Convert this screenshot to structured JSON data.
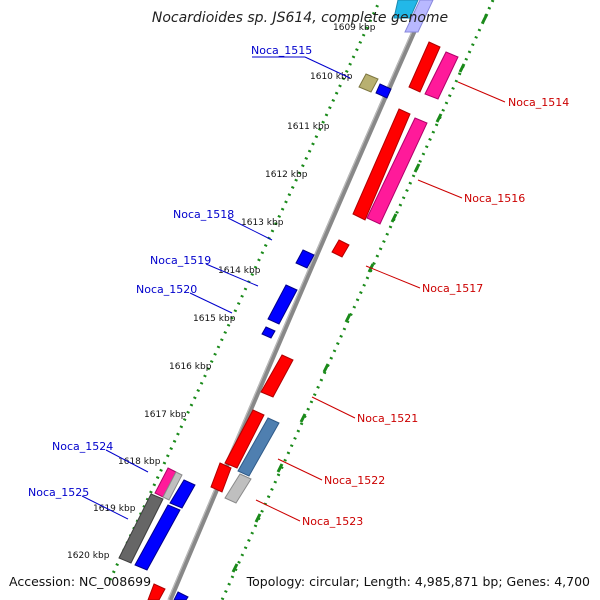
{
  "title": "Nocardioides sp. JS614, complete genome",
  "footer": {
    "accession": "Accession: NC_008699",
    "topology": "Topology: circular; Length: 4,985,871 bp; Genes: 4,700"
  },
  "colors": {
    "backbone": "#888888",
    "tick_line": "#1a8a1a",
    "forward_label": "#cc0000",
    "reverse_label": "#0000cc",
    "red": "#ff0000",
    "pink": "#ff1a9a",
    "blue": "#0000ff",
    "olive": "#b8b070",
    "steel": "#4f7fb0",
    "silver": "#bfbfbf",
    "gray": "#666666",
    "cyan": "#22b8e8",
    "lavender": "#b8b8ff"
  },
  "kbp_labels": [
    "1609 kbp",
    "1610 kbp",
    "1611 kbp",
    "1612 kbp",
    "1613 kbp",
    "1614 kbp",
    "1615 kbp",
    "1616 kbp",
    "1617 kbp",
    "1618 kbp",
    "1619 kbp",
    "1620 kbp"
  ],
  "gene_labels": {
    "noca_1514": "Noca_1514",
    "noca_1515": "Noca_1515",
    "noca_1516": "Noca_1516",
    "noca_1517": "Noca_1517",
    "noca_1518": "Noca_1518",
    "noca_1519": "Noca_1519",
    "noca_1520": "Noca_1520",
    "noca_1521": "Noca_1521",
    "noca_1522": "Noca_1522",
    "noca_1523": "Noca_1523",
    "noca_1524": "Noca_1524",
    "noca_1525": "Noca_1525"
  }
}
